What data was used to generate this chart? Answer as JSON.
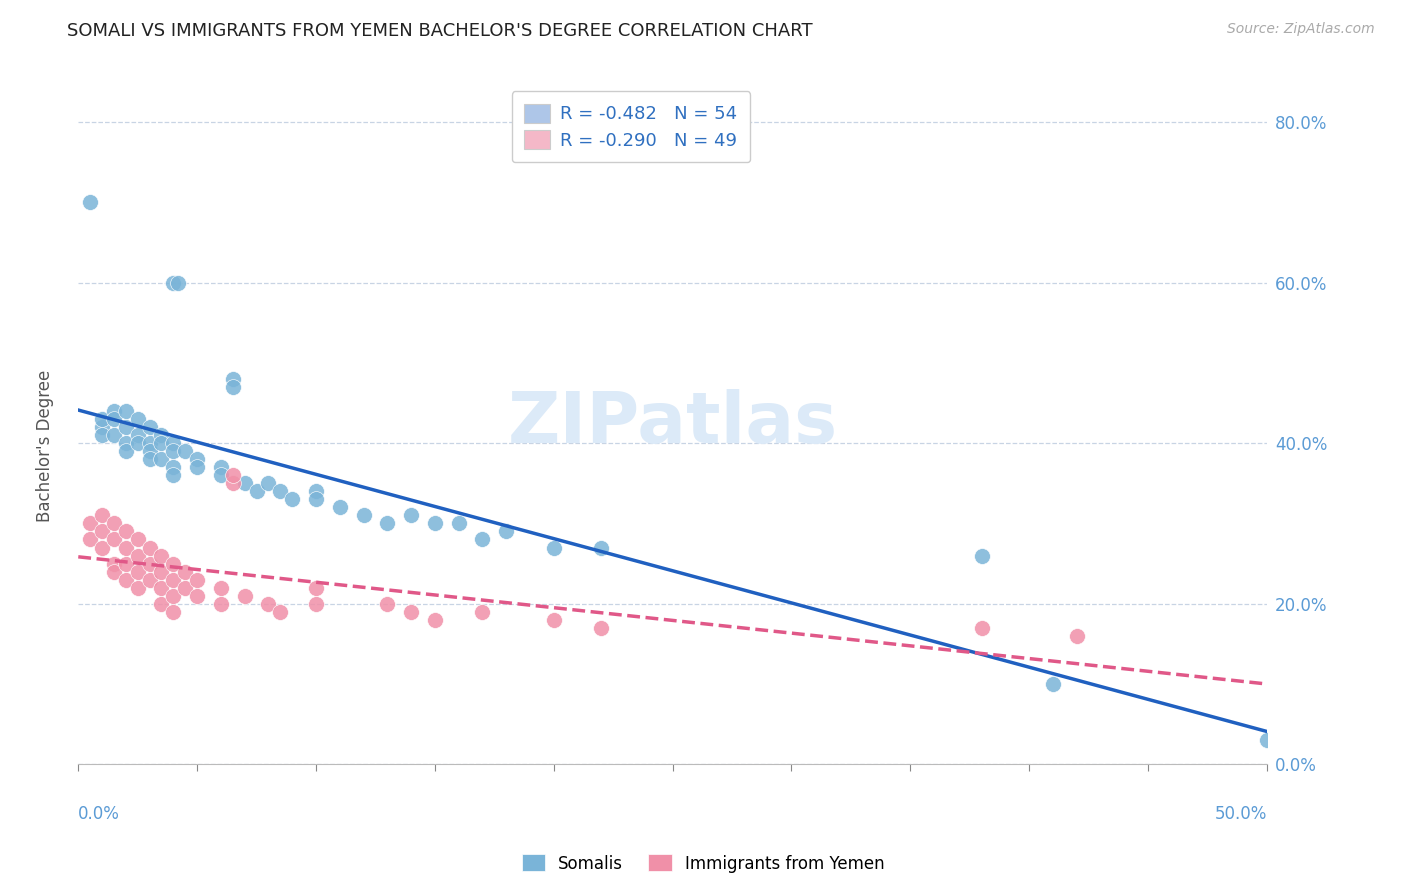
{
  "title": "SOMALI VS IMMIGRANTS FROM YEMEN BACHELOR'S DEGREE CORRELATION CHART",
  "source": "Source: ZipAtlas.com",
  "ylabel": "Bachelor's Degree",
  "somali_label": "R = -0.482   N = 54",
  "yemen_label": "R = -0.290   N = 49",
  "legend_somali_color": "#aec6e8",
  "legend_yemen_color": "#f4b8c8",
  "somali_color": "#7ab4d8",
  "yemen_color": "#f090a8",
  "trendline_somali_color": "#2060c0",
  "trendline_yemen_color": "#e05888",
  "background_color": "#ffffff",
  "grid_color": "#c8d4e4",
  "watermark_color": "#dceaf8",
  "somali_points": [
    [
      0.01,
      0.42
    ],
    [
      0.01,
      0.41
    ],
    [
      0.01,
      0.43
    ],
    [
      0.015,
      0.44
    ],
    [
      0.015,
      0.43
    ],
    [
      0.015,
      0.41
    ],
    [
      0.02,
      0.44
    ],
    [
      0.02,
      0.42
    ],
    [
      0.02,
      0.4
    ],
    [
      0.02,
      0.39
    ],
    [
      0.025,
      0.43
    ],
    [
      0.025,
      0.41
    ],
    [
      0.025,
      0.4
    ],
    [
      0.03,
      0.42
    ],
    [
      0.03,
      0.4
    ],
    [
      0.03,
      0.39
    ],
    [
      0.03,
      0.38
    ],
    [
      0.035,
      0.41
    ],
    [
      0.035,
      0.4
    ],
    [
      0.035,
      0.38
    ],
    [
      0.04,
      0.4
    ],
    [
      0.04,
      0.39
    ],
    [
      0.04,
      0.37
    ],
    [
      0.04,
      0.36
    ],
    [
      0.045,
      0.39
    ],
    [
      0.05,
      0.38
    ],
    [
      0.05,
      0.37
    ],
    [
      0.06,
      0.37
    ],
    [
      0.06,
      0.36
    ],
    [
      0.065,
      0.48
    ],
    [
      0.065,
      0.47
    ],
    [
      0.07,
      0.35
    ],
    [
      0.075,
      0.34
    ],
    [
      0.08,
      0.35
    ],
    [
      0.085,
      0.34
    ],
    [
      0.09,
      0.33
    ],
    [
      0.1,
      0.34
    ],
    [
      0.1,
      0.33
    ],
    [
      0.11,
      0.32
    ],
    [
      0.12,
      0.31
    ],
    [
      0.13,
      0.3
    ],
    [
      0.14,
      0.31
    ],
    [
      0.15,
      0.3
    ],
    [
      0.16,
      0.3
    ],
    [
      0.17,
      0.28
    ],
    [
      0.18,
      0.29
    ],
    [
      0.2,
      0.27
    ],
    [
      0.22,
      0.27
    ],
    [
      0.005,
      0.7
    ],
    [
      0.04,
      0.6
    ],
    [
      0.042,
      0.6
    ],
    [
      0.38,
      0.26
    ],
    [
      0.41,
      0.1
    ],
    [
      0.5,
      0.03
    ]
  ],
  "yemen_points": [
    [
      0.005,
      0.3
    ],
    [
      0.005,
      0.28
    ],
    [
      0.01,
      0.31
    ],
    [
      0.01,
      0.29
    ],
    [
      0.01,
      0.27
    ],
    [
      0.015,
      0.3
    ],
    [
      0.015,
      0.28
    ],
    [
      0.015,
      0.25
    ],
    [
      0.015,
      0.24
    ],
    [
      0.02,
      0.29
    ],
    [
      0.02,
      0.27
    ],
    [
      0.02,
      0.25
    ],
    [
      0.02,
      0.23
    ],
    [
      0.025,
      0.28
    ],
    [
      0.025,
      0.26
    ],
    [
      0.025,
      0.24
    ],
    [
      0.025,
      0.22
    ],
    [
      0.03,
      0.27
    ],
    [
      0.03,
      0.25
    ],
    [
      0.03,
      0.23
    ],
    [
      0.035,
      0.26
    ],
    [
      0.035,
      0.24
    ],
    [
      0.035,
      0.22
    ],
    [
      0.035,
      0.2
    ],
    [
      0.04,
      0.25
    ],
    [
      0.04,
      0.23
    ],
    [
      0.04,
      0.21
    ],
    [
      0.04,
      0.19
    ],
    [
      0.045,
      0.24
    ],
    [
      0.045,
      0.22
    ],
    [
      0.05,
      0.23
    ],
    [
      0.05,
      0.21
    ],
    [
      0.06,
      0.22
    ],
    [
      0.06,
      0.2
    ],
    [
      0.065,
      0.35
    ],
    [
      0.065,
      0.36
    ],
    [
      0.07,
      0.21
    ],
    [
      0.08,
      0.2
    ],
    [
      0.085,
      0.19
    ],
    [
      0.1,
      0.22
    ],
    [
      0.1,
      0.2
    ],
    [
      0.13,
      0.2
    ],
    [
      0.14,
      0.19
    ],
    [
      0.15,
      0.18
    ],
    [
      0.17,
      0.19
    ],
    [
      0.2,
      0.18
    ],
    [
      0.22,
      0.17
    ],
    [
      0.38,
      0.17
    ],
    [
      0.42,
      0.16
    ]
  ]
}
